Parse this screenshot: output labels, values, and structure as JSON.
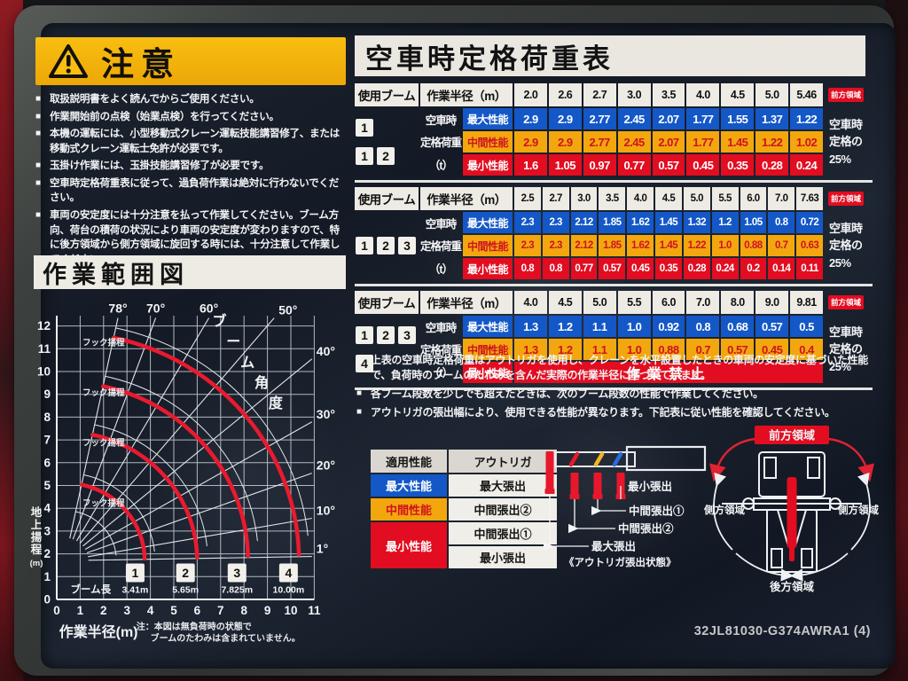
{
  "placard": {
    "part_number": "32JL81030-G374AWRA1 (4)"
  },
  "caution": {
    "title": "注意",
    "items": [
      "取扱説明書をよく読んでからご使用ください。",
      "作業開始前の点検（始業点検）を行ってください。",
      "本機の運転には、小型移動式クレーン運転技能講習修了、または移動式クレーン運転士免許が必要です。",
      "玉掛け作業には、玉掛技能講習修了が必要です。",
      "空車時定格荷重表に従って、過負荷作業は絶対に行わないでください。",
      "車両の安定度には十分注意を払って作業してください。ブーム方向、荷台の積荷の状況により車両の安定度が変わりますので、特に後方領域から側方領域に旋回する時には、十分注意して作業してください。"
    ]
  },
  "range_chart": {
    "title": "作業範囲図",
    "ylabel_chars": "地上揚程",
    "ylabel_unit": "(m)",
    "xlabel": "作業半径(m)",
    "boom_angle_label": "ブーム角度",
    "hook_label": "フック揚程",
    "boom_length_label": "ブーム長",
    "note_lines": [
      "注：本図は無負荷時の状態で",
      "ブームのたわみは含まれていません。"
    ],
    "angles_deg": [
      78,
      70,
      60,
      50,
      40,
      30,
      20,
      10,
      1
    ],
    "x_ticks": [
      0,
      1,
      2,
      3,
      4,
      5,
      6,
      7,
      8,
      9,
      10,
      11
    ],
    "y_ticks": [
      0,
      1,
      2,
      3,
      4,
      5,
      6,
      7,
      8,
      9,
      10,
      11,
      12
    ],
    "hook_height_marks_m": [
      11.15,
      8.95,
      6.75,
      4.1
    ],
    "booms": [
      {
        "no": "1",
        "length": "3.41m",
        "radius_m": 3.41
      },
      {
        "no": "2",
        "length": "5.65m",
        "radius_m": 5.65
      },
      {
        "no": "3",
        "length": "7.825m",
        "radius_m": 7.825
      },
      {
        "no": "4",
        "length": "10.00m",
        "radius_m": 10.0
      }
    ]
  },
  "load_table": {
    "title": "空車時定格荷重表",
    "col_boom": "使用ブーム",
    "col_radius": "作業半径（m）",
    "front_area": "前方領域",
    "row_label_lines": [
      "空車時",
      "定格荷重",
      "（t）"
    ],
    "side_note_lines": [
      "空車時",
      "定格の",
      "25%"
    ],
    "perf_labels": {
      "max": "最大性能",
      "mid": "中間性能",
      "min": "最小性能"
    },
    "tables": [
      {
        "booms": [
          [
            "1"
          ],
          [
            "1",
            "2"
          ]
        ],
        "radii": [
          "2.0",
          "2.6",
          "2.7",
          "3.0",
          "3.5",
          "4.0",
          "4.5",
          "5.0",
          "5.46"
        ],
        "max": [
          "2.9",
          "2.9",
          "2.77",
          "2.45",
          "2.07",
          "1.77",
          "1.55",
          "1.37",
          "1.22"
        ],
        "mid": [
          "2.9",
          "2.9",
          "2.77",
          "2.45",
          "2.07",
          "1.77",
          "1.45",
          "1.22",
          "1.02"
        ],
        "min": [
          "1.6",
          "1.05",
          "0.97",
          "0.77",
          "0.57",
          "0.45",
          "0.35",
          "0.28",
          "0.24"
        ]
      },
      {
        "booms": [
          [
            "1",
            "2",
            "3"
          ]
        ],
        "radii": [
          "2.5",
          "2.7",
          "3.0",
          "3.5",
          "4.0",
          "4.5",
          "5.0",
          "5.5",
          "6.0",
          "7.0",
          "7.63"
        ],
        "max": [
          "2.3",
          "2.3",
          "2.12",
          "1.85",
          "1.62",
          "1.45",
          "1.32",
          "1.2",
          "1.05",
          "0.8",
          "0.72"
        ],
        "mid": [
          "2.3",
          "2.3",
          "2.12",
          "1.85",
          "1.62",
          "1.45",
          "1.22",
          "1.0",
          "0.88",
          "0.7",
          "0.63"
        ],
        "min": [
          "0.8",
          "0.8",
          "0.77",
          "0.57",
          "0.45",
          "0.35",
          "0.28",
          "0.24",
          "0.2",
          "0.14",
          "0.11"
        ]
      },
      {
        "booms": [
          [
            "1",
            "2",
            "3"
          ],
          [
            "4"
          ]
        ],
        "radii": [
          "4.0",
          "4.5",
          "5.0",
          "5.5",
          "6.0",
          "7.0",
          "8.0",
          "9.0",
          "9.81"
        ],
        "max": [
          "1.3",
          "1.2",
          "1.1",
          "1.0",
          "0.92",
          "0.8",
          "0.68",
          "0.57",
          "0.5"
        ],
        "mid": [
          "1.3",
          "1.2",
          "1.1",
          "1.0",
          "0.88",
          "0.7",
          "0.57",
          "0.45",
          "0.4"
        ],
        "min": [],
        "min_banner": "作業禁止"
      }
    ],
    "notes": [
      "上表の空車時定格荷重はアウトリガを使用し、クレーンを水平設置したときの車両の安定度に基づいた性能で、負荷時のブームのたわみを含んだ実際の作業半径に基づいています。",
      "各ブーム段数を少しでも超えたときは、次のブーム段数の性能で作業してください。",
      "アウトリガの張出幅により、使用できる性能が異なります。下記表に従い性能を確認してください。"
    ]
  },
  "legend": {
    "headers": [
      "適用性能",
      "アウトリガ"
    ],
    "max_perf": "最大性能",
    "mid_perf": "中間性能",
    "min_perf": "最小性能",
    "max_out": "最大張出",
    "mid_out": "中間張出②",
    "min_out1": "中間張出①",
    "min_out2": "最小張出"
  },
  "outrigger_diagram": {
    "labels": [
      "最小張出",
      "中間張出①",
      "中間張出②",
      "最大張出"
    ],
    "caption": "《アウトリガ張出状態》"
  },
  "vehicle_diagram": {
    "front": "前方領域",
    "side": "側方領域",
    "rear": "後方領域"
  }
}
